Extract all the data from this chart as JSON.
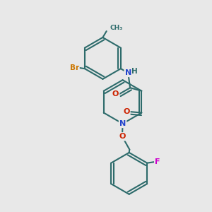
{
  "background_color": "#e8e8e8",
  "bond_color": "#2d6b6b",
  "atom_colors": {
    "Br": "#cc7700",
    "N": "#2244cc",
    "O": "#cc2200",
    "F": "#cc00cc",
    "H": "#2d6b6b",
    "C": "#2d6b6b"
  },
  "figsize": [
    3.0,
    3.0
  ],
  "dpi": 100
}
